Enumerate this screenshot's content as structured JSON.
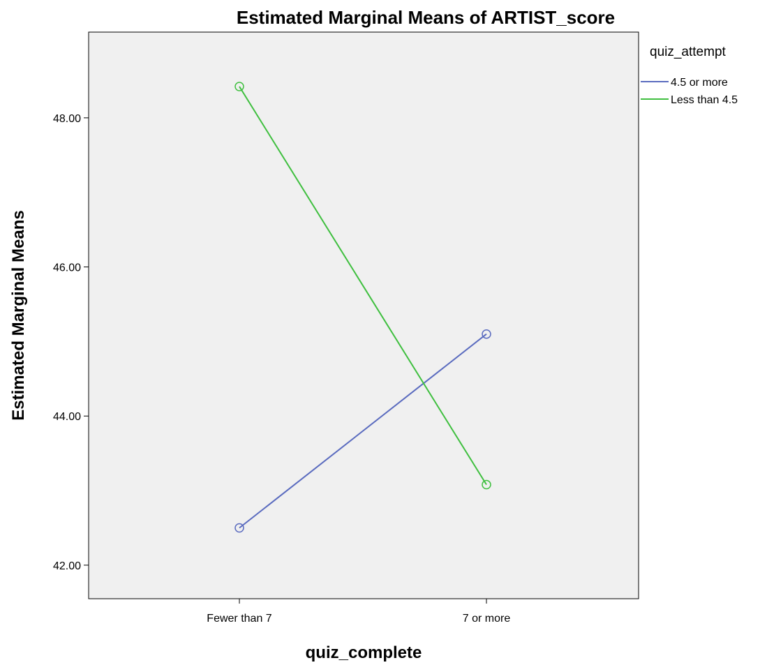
{
  "chart_data": {
    "type": "line",
    "title": "Estimated Marginal Means of ARTIST_score",
    "xlabel": "quiz_complete",
    "ylabel": "Estimated Marginal Means",
    "categories": [
      "Fewer than 7",
      "7 or more"
    ],
    "ylim": [
      41.55,
      49.15
    ],
    "yticks": [
      42,
      44,
      46,
      48
    ],
    "ytick_labels": [
      "42.00",
      "44.00",
      "46.00",
      "48.00"
    ],
    "grid": false,
    "legend": {
      "title": "quiz_attempt",
      "placement": "right"
    },
    "series": [
      {
        "name": "4.5 or more",
        "values": [
          42.5,
          45.1
        ],
        "color": "#5a6bbf"
      },
      {
        "name": "Less than 4.5",
        "values": [
          48.42,
          43.08
        ],
        "color": "#3fbf3f"
      }
    ],
    "background_color": "#f0f0f0"
  }
}
